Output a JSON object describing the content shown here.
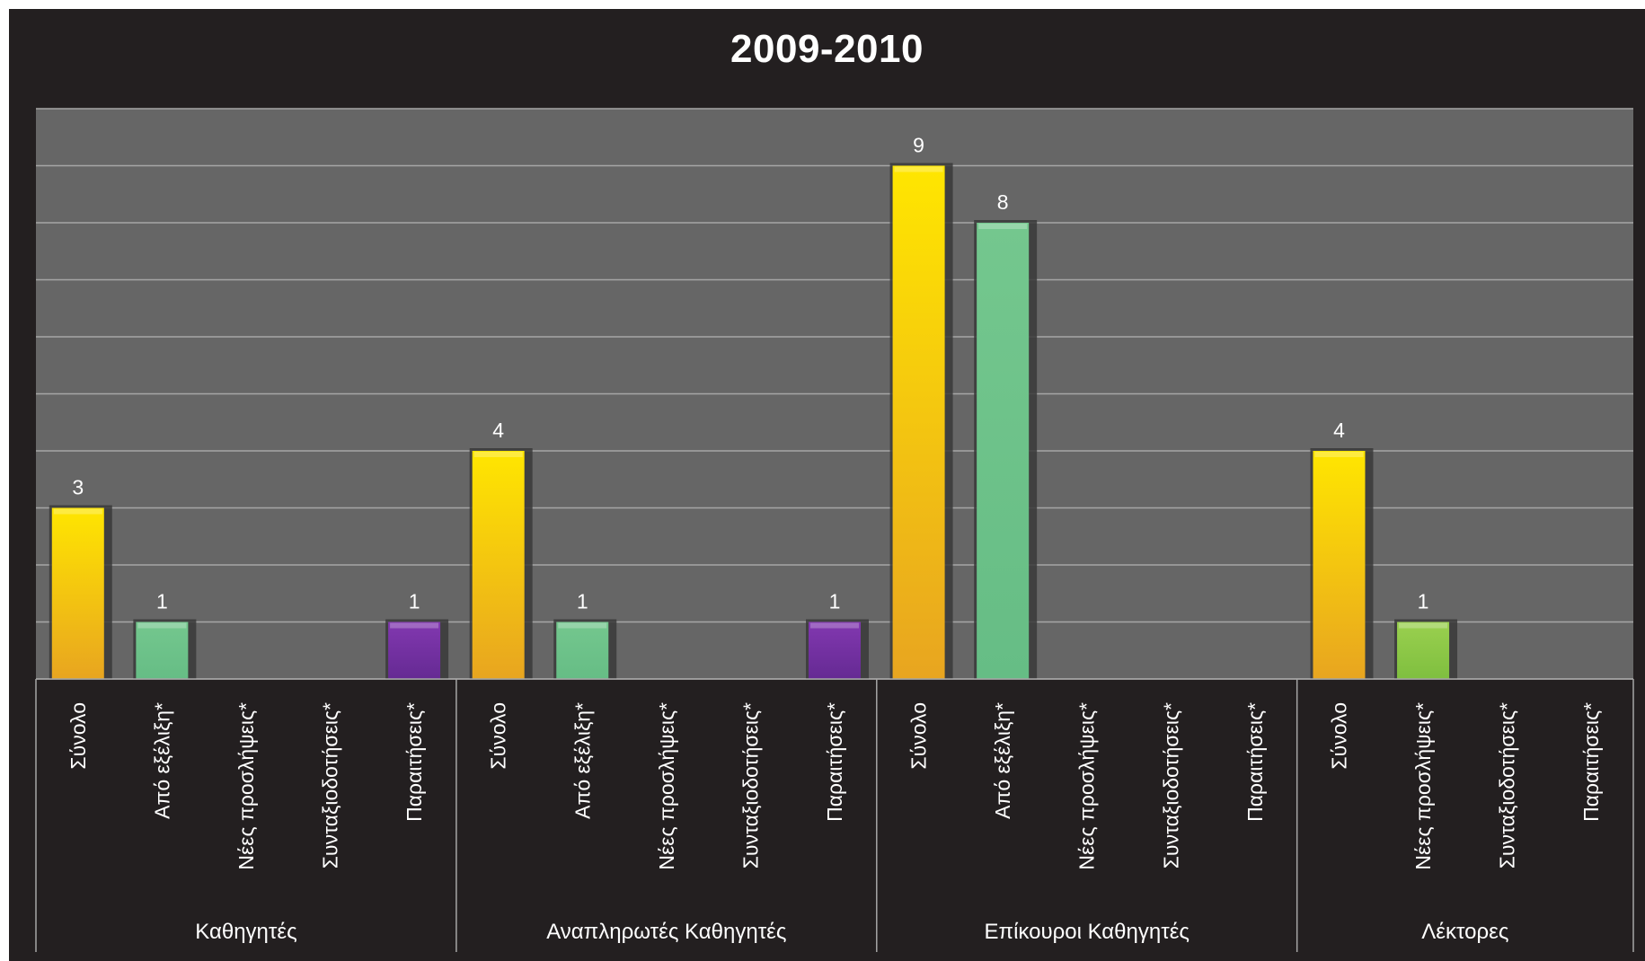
{
  "chart_data": {
    "type": "bar",
    "title": "2009-2010",
    "xlabel": "",
    "ylabel": "",
    "ylim": [
      0,
      10
    ],
    "grid": true,
    "legend": "none",
    "groups": [
      {
        "name": "Καθηγητές",
        "categories": [
          "Σύνολο",
          "Από εξέλιξη*",
          "Νέες προσλήψεις*",
          "Συνταξιοδοτήσεις*",
          "Παραιτήσεις*"
        ],
        "values": [
          3,
          1,
          null,
          null,
          1
        ],
        "colors": [
          "#fcd116",
          "#6cc38a",
          null,
          null,
          "#7030a0"
        ]
      },
      {
        "name": "Αναπληρωτές Καθηγητές",
        "categories": [
          "Σύνολο",
          "Από εξέλιξη*",
          "Νέες προσλήψεις*",
          "Συνταξιοδοτήσεις*",
          "Παραιτήσεις*"
        ],
        "values": [
          4,
          1,
          null,
          null,
          1
        ],
        "colors": [
          "#fcd116",
          "#6cc38a",
          null,
          null,
          "#7030a0"
        ]
      },
      {
        "name": "Επίκουροι Καθηγητές",
        "categories": [
          "Σύνολο",
          "Από εξέλιξη*",
          "Νέες προσλήψεις*",
          "Συνταξιοδοτήσεις*",
          "Παραιτήσεις*"
        ],
        "values": [
          9,
          8,
          null,
          null,
          null
        ],
        "colors": [
          "#fcd116",
          "#6cc38a",
          null,
          null,
          null
        ]
      },
      {
        "name": "Λέκτορες",
        "categories": [
          "Σύνολο",
          "Νέες προσλήψεις*",
          "Συνταξιοδοτήσεις*",
          "Παραιτήσεις*"
        ],
        "values": [
          4,
          1,
          null,
          null
        ],
        "colors": [
          "#fcd116",
          "#92d050",
          null,
          null
        ]
      }
    ],
    "colors": {
      "background": "#231f20",
      "plot_area": "#666666",
      "gridline": "#a6a6a6",
      "text": "#ffffff"
    }
  }
}
